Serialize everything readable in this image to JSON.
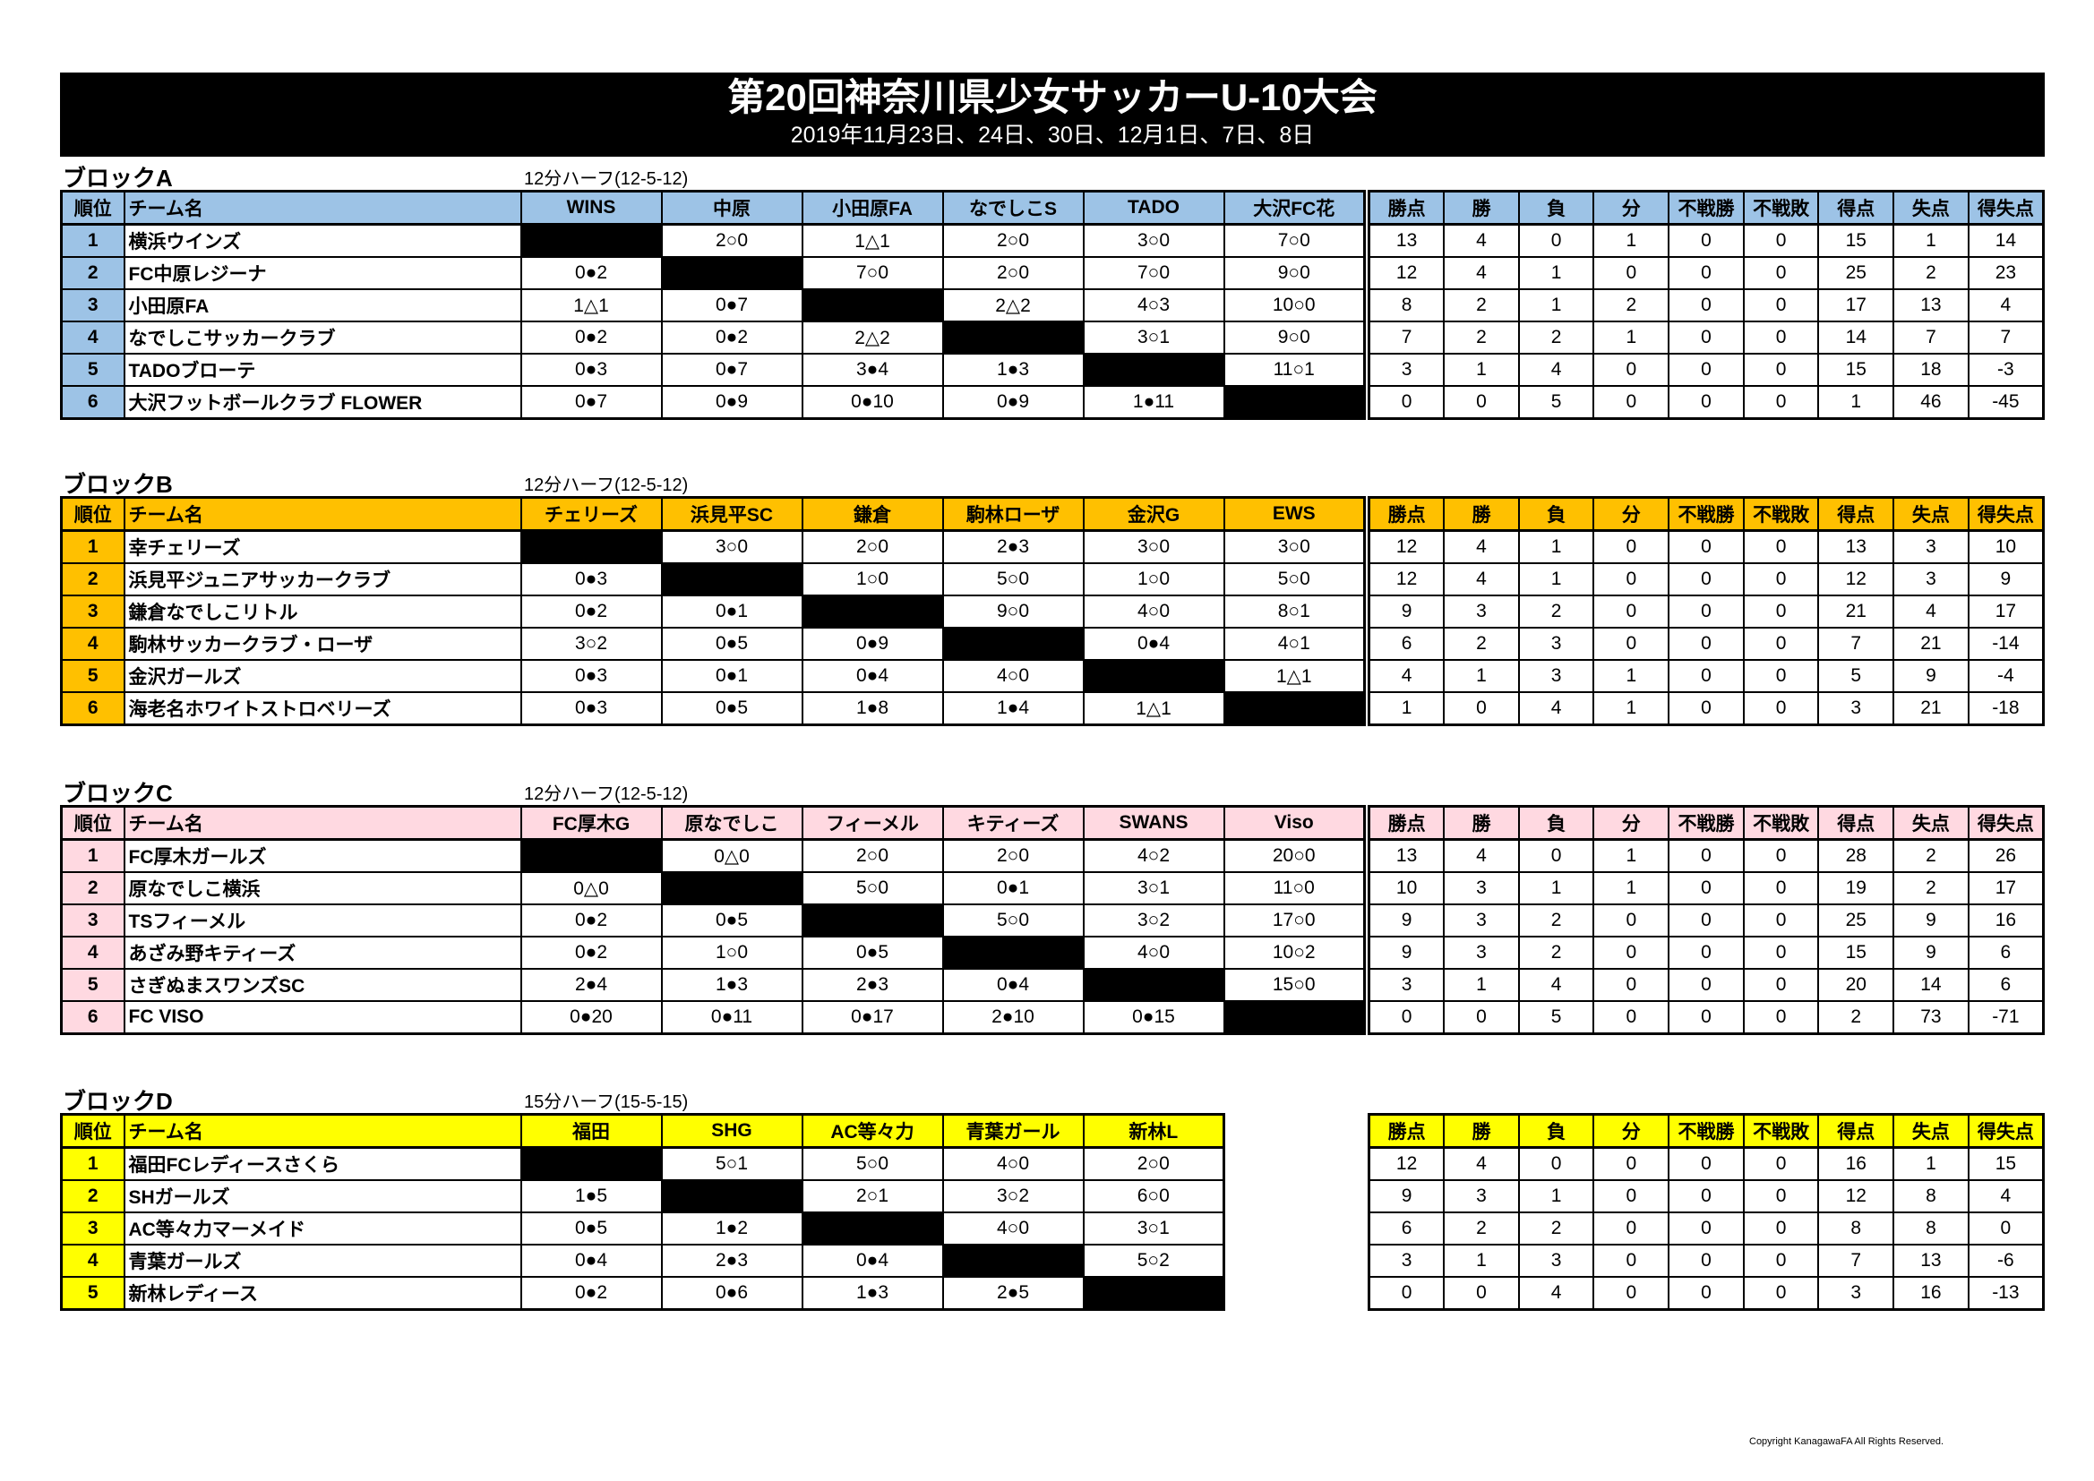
{
  "header": {
    "title": "第20回神奈川県少女サッカーU-10大会",
    "dates": "2019年11月23日、24日、30日、12月1日、7日、8日"
  },
  "colors": {
    "blockA": "#9DC3E6",
    "blockB": "#FFC000",
    "blockC": "#FFD9E1",
    "blockD": "#FFFF00",
    "title_bg": "#000000"
  },
  "stat_headers": [
    "勝点",
    "勝",
    "負",
    "分",
    "不戦勝",
    "不戦敗",
    "得点",
    "失点",
    "得失点"
  ],
  "rank_header": "順位",
  "team_header": "チーム名",
  "blocks": [
    {
      "label": "ブロックA",
      "format": "12分ハーフ(12-5-12)",
      "columns": [
        "WINS",
        "中原",
        "小田原FA",
        "なでしこS",
        "TADO",
        "大沢FC花"
      ],
      "rows": [
        {
          "rank": "1",
          "team": "横浜ウインズ",
          "results": [
            "",
            "2○0",
            "1△1",
            "2○0",
            "3○0",
            "7○0"
          ],
          "stats": [
            "13",
            "4",
            "0",
            "1",
            "0",
            "0",
            "15",
            "1",
            "14"
          ]
        },
        {
          "rank": "2",
          "team": "FC中原レジーナ",
          "results": [
            "0●2",
            "",
            "7○0",
            "2○0",
            "7○0",
            "9○0"
          ],
          "stats": [
            "12",
            "4",
            "1",
            "0",
            "0",
            "0",
            "25",
            "2",
            "23"
          ]
        },
        {
          "rank": "3",
          "team": "小田原FA",
          "results": [
            "1△1",
            "0●7",
            "",
            "2△2",
            "4○3",
            "10○0"
          ],
          "stats": [
            "8",
            "2",
            "1",
            "2",
            "0",
            "0",
            "17",
            "13",
            "4"
          ]
        },
        {
          "rank": "4",
          "team": "なでしこサッカークラブ",
          "results": [
            "0●2",
            "0●2",
            "2△2",
            "",
            "3○1",
            "9○0"
          ],
          "stats": [
            "7",
            "2",
            "2",
            "1",
            "0",
            "0",
            "14",
            "7",
            "7"
          ]
        },
        {
          "rank": "5",
          "team": "TADOブローテ",
          "results": [
            "0●3",
            "0●7",
            "3●4",
            "1●3",
            "",
            "11○1"
          ],
          "stats": [
            "3",
            "1",
            "4",
            "0",
            "0",
            "0",
            "15",
            "18",
            "-3"
          ]
        },
        {
          "rank": "6",
          "team": "大沢フットボールクラブ FLOWER",
          "results": [
            "0●7",
            "0●9",
            "0●10",
            "0●9",
            "1●11",
            ""
          ],
          "stats": [
            "0",
            "0",
            "5",
            "0",
            "0",
            "0",
            "1",
            "46",
            "-45"
          ]
        }
      ]
    },
    {
      "label": "ブロックB",
      "format": "12分ハーフ(12-5-12)",
      "columns": [
        "チェリーズ",
        "浜見平SC",
        "鎌倉",
        "駒林ローザ",
        "金沢G",
        "EWS"
      ],
      "rows": [
        {
          "rank": "1",
          "team": "幸チェリーズ",
          "results": [
            "",
            "3○0",
            "2○0",
            "2●3",
            "3○0",
            "3○0"
          ],
          "stats": [
            "12",
            "4",
            "1",
            "0",
            "0",
            "0",
            "13",
            "3",
            "10"
          ]
        },
        {
          "rank": "2",
          "team": "浜見平ジュニアサッカークラブ",
          "results": [
            "0●3",
            "",
            "1○0",
            "5○0",
            "1○0",
            "5○0"
          ],
          "stats": [
            "12",
            "4",
            "1",
            "0",
            "0",
            "0",
            "12",
            "3",
            "9"
          ]
        },
        {
          "rank": "3",
          "team": "鎌倉なでしこリトル",
          "results": [
            "0●2",
            "0●1",
            "",
            "9○0",
            "4○0",
            "8○1"
          ],
          "stats": [
            "9",
            "3",
            "2",
            "0",
            "0",
            "0",
            "21",
            "4",
            "17"
          ]
        },
        {
          "rank": "4",
          "team": "駒林サッカークラブ・ローザ",
          "results": [
            "3○2",
            "0●5",
            "0●9",
            "",
            "0●4",
            "4○1"
          ],
          "stats": [
            "6",
            "2",
            "3",
            "0",
            "0",
            "0",
            "7",
            "21",
            "-14"
          ]
        },
        {
          "rank": "5",
          "team": "金沢ガールズ",
          "results": [
            "0●3",
            "0●1",
            "0●4",
            "4○0",
            "",
            "1△1"
          ],
          "stats": [
            "4",
            "1",
            "3",
            "1",
            "0",
            "0",
            "5",
            "9",
            "-4"
          ]
        },
        {
          "rank": "6",
          "team": "海老名ホワイトストロベリーズ",
          "results": [
            "0●3",
            "0●5",
            "1●8",
            "1●4",
            "1△1",
            ""
          ],
          "stats": [
            "1",
            "0",
            "4",
            "1",
            "0",
            "0",
            "3",
            "21",
            "-18"
          ]
        }
      ]
    },
    {
      "label": "ブロックC",
      "format": "12分ハーフ(12-5-12)",
      "columns": [
        "FC厚木G",
        "原なでしこ",
        "フィーメル",
        "キティーズ",
        "SWANS",
        "Viso"
      ],
      "rows": [
        {
          "rank": "1",
          "team": "FC厚木ガールズ",
          "results": [
            "",
            "0△0",
            "2○0",
            "2○0",
            "4○2",
            "20○0"
          ],
          "stats": [
            "13",
            "4",
            "0",
            "1",
            "0",
            "0",
            "28",
            "2",
            "26"
          ]
        },
        {
          "rank": "2",
          "team": "原なでしこ横浜",
          "results": [
            "0△0",
            "",
            "5○0",
            "0●1",
            "3○1",
            "11○0"
          ],
          "stats": [
            "10",
            "3",
            "1",
            "1",
            "0",
            "0",
            "19",
            "2",
            "17"
          ]
        },
        {
          "rank": "3",
          "team": "TSフィーメル",
          "results": [
            "0●2",
            "0●5",
            "",
            "5○0",
            "3○2",
            "17○0"
          ],
          "stats": [
            "9",
            "3",
            "2",
            "0",
            "0",
            "0",
            "25",
            "9",
            "16"
          ]
        },
        {
          "rank": "4",
          "team": "あざみ野キティーズ",
          "results": [
            "0●2",
            "1○0",
            "0●5",
            "",
            "4○0",
            "10○2"
          ],
          "stats": [
            "9",
            "3",
            "2",
            "0",
            "0",
            "0",
            "15",
            "9",
            "6"
          ]
        },
        {
          "rank": "5",
          "team": "さぎぬまスワンズSC",
          "results": [
            "2●4",
            "1●3",
            "2●3",
            "0●4",
            "",
            "15○0"
          ],
          "stats": [
            "3",
            "1",
            "4",
            "0",
            "0",
            "0",
            "20",
            "14",
            "6"
          ]
        },
        {
          "rank": "6",
          "team": "FC VISO",
          "results": [
            "0●20",
            "0●11",
            "0●17",
            "2●10",
            "0●15",
            ""
          ],
          "stats": [
            "0",
            "0",
            "5",
            "0",
            "0",
            "0",
            "2",
            "73",
            "-71"
          ]
        }
      ]
    },
    {
      "label": "ブロックD",
      "format": "15分ハーフ(15-5-15)",
      "columns": [
        "福田",
        "SHG",
        "AC等々力",
        "青葉ガール",
        "新林L"
      ],
      "rows": [
        {
          "rank": "1",
          "team": "福田FCレディースさくら",
          "results": [
            "",
            "5○1",
            "5○0",
            "4○0",
            "2○0"
          ],
          "stats": [
            "12",
            "4",
            "0",
            "0",
            "0",
            "0",
            "16",
            "1",
            "15"
          ]
        },
        {
          "rank": "2",
          "team": "SHガールズ",
          "results": [
            "1●5",
            "",
            "2○1",
            "3○2",
            "6○0"
          ],
          "stats": [
            "9",
            "3",
            "1",
            "0",
            "0",
            "0",
            "12",
            "8",
            "4"
          ]
        },
        {
          "rank": "3",
          "team": "AC等々力マーメイド",
          "results": [
            "0●5",
            "1●2",
            "",
            "4○0",
            "3○1"
          ],
          "stats": [
            "6",
            "2",
            "2",
            "0",
            "0",
            "0",
            "8",
            "8",
            "0"
          ]
        },
        {
          "rank": "4",
          "team": "青葉ガールズ",
          "results": [
            "0●4",
            "2●3",
            "0●4",
            "",
            "5○2"
          ],
          "stats": [
            "3",
            "1",
            "3",
            "0",
            "0",
            "0",
            "7",
            "13",
            "-6"
          ]
        },
        {
          "rank": "5",
          "team": "新林レディース",
          "results": [
            "0●2",
            "0●6",
            "1●3",
            "2●5",
            ""
          ],
          "stats": [
            "0",
            "0",
            "4",
            "0",
            "0",
            "0",
            "3",
            "16",
            "-13"
          ]
        }
      ]
    }
  ],
  "copyright": "Copyright KanagawaFA All Rights Reserved."
}
